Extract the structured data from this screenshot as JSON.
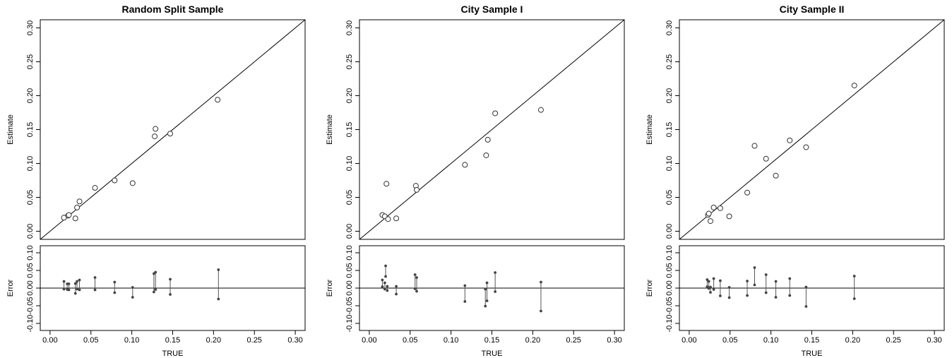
{
  "chart_data": [
    {
      "type": "scatter",
      "title": "Random Split Sample",
      "xlabel": "TRUE",
      "ylabel_top": "Estimate",
      "ylabel_bottom": "Error",
      "xlim": [
        -0.012,
        0.312
      ],
      "ylim_top": [
        -0.012,
        0.312
      ],
      "ylim_bottom": [
        -0.12,
        0.12
      ],
      "xticks": [
        "0.00",
        "0.05",
        "0.10",
        "0.15",
        "0.20",
        "0.25",
        "0.30"
      ],
      "yticks_top": [
        "0.00",
        "0.05",
        "0.10",
        "0.15",
        "0.20",
        "0.25",
        "0.30"
      ],
      "yticks_bottom": [
        "-0.10",
        "-0.05",
        "0.00",
        "0.05",
        "0.10"
      ],
      "reference_line": "y = x",
      "points": [
        {
          "x": 0.017,
          "y": 0.02
        },
        {
          "x": 0.022,
          "y": 0.023
        },
        {
          "x": 0.023,
          "y": 0.024
        },
        {
          "x": 0.031,
          "y": 0.019
        },
        {
          "x": 0.033,
          "y": 0.035
        },
        {
          "x": 0.036,
          "y": 0.044
        },
        {
          "x": 0.055,
          "y": 0.064
        },
        {
          "x": 0.079,
          "y": 0.075
        },
        {
          "x": 0.101,
          "y": 0.071
        },
        {
          "x": 0.128,
          "y": 0.14
        },
        {
          "x": 0.129,
          "y": 0.151
        },
        {
          "x": 0.147,
          "y": 0.144
        },
        {
          "x": 0.205,
          "y": 0.194
        }
      ],
      "error_bars": [
        {
          "x": 0.017,
          "low": -0.003,
          "high": 0.019
        },
        {
          "x": 0.021,
          "low": -0.004,
          "high": 0.012
        },
        {
          "x": 0.023,
          "low": -0.005,
          "high": 0.012
        },
        {
          "x": 0.031,
          "low": -0.015,
          "high": 0.013
        },
        {
          "x": 0.033,
          "low": -0.003,
          "high": 0.019
        },
        {
          "x": 0.036,
          "low": -0.005,
          "high": 0.023
        },
        {
          "x": 0.055,
          "low": -0.005,
          "high": 0.03
        },
        {
          "x": 0.079,
          "low": -0.013,
          "high": 0.017
        },
        {
          "x": 0.101,
          "low": -0.026,
          "high": 0.002
        },
        {
          "x": 0.127,
          "low": -0.011,
          "high": 0.041
        },
        {
          "x": 0.129,
          "low": -0.004,
          "high": 0.045
        },
        {
          "x": 0.147,
          "low": -0.018,
          "high": 0.025
        },
        {
          "x": 0.206,
          "low": -0.031,
          "high": 0.052
        }
      ]
    },
    {
      "type": "scatter",
      "title": "City Sample I",
      "xlabel": "TRUE",
      "ylabel_top": "Estimate",
      "ylabel_bottom": "Error",
      "xlim": [
        -0.012,
        0.312
      ],
      "ylim_top": [
        -0.012,
        0.312
      ],
      "ylim_bottom": [
        -0.12,
        0.12
      ],
      "xticks": [
        "0.00",
        "0.05",
        "0.10",
        "0.15",
        "0.20",
        "0.25",
        "0.30"
      ],
      "yticks_top": [
        "0.00",
        "0.05",
        "0.10",
        "0.15",
        "0.20",
        "0.25",
        "0.30"
      ],
      "yticks_bottom": [
        "-0.10",
        "-0.05",
        "0.00",
        "0.05",
        "0.10"
      ],
      "reference_line": "y = x",
      "points": [
        {
          "x": 0.016,
          "y": 0.024
        },
        {
          "x": 0.019,
          "y": 0.022
        },
        {
          "x": 0.021,
          "y": 0.07
        },
        {
          "x": 0.023,
          "y": 0.018
        },
        {
          "x": 0.033,
          "y": 0.019
        },
        {
          "x": 0.057,
          "y": 0.067
        },
        {
          "x": 0.058,
          "y": 0.061
        },
        {
          "x": 0.117,
          "y": 0.098
        },
        {
          "x": 0.143,
          "y": 0.112
        },
        {
          "x": 0.145,
          "y": 0.135
        },
        {
          "x": 0.154,
          "y": 0.174
        },
        {
          "x": 0.21,
          "y": 0.179
        }
      ],
      "error_bars": [
        {
          "x": 0.016,
          "low": 0.004,
          "high": 0.023
        },
        {
          "x": 0.019,
          "low": -0.003,
          "high": 0.015
        },
        {
          "x": 0.02,
          "low": 0.033,
          "high": 0.063
        },
        {
          "x": 0.022,
          "low": -0.007,
          "high": 0.005
        },
        {
          "x": 0.033,
          "low": -0.017,
          "high": 0.005
        },
        {
          "x": 0.056,
          "low": -0.002,
          "high": 0.038
        },
        {
          "x": 0.058,
          "low": -0.009,
          "high": 0.03
        },
        {
          "x": 0.117,
          "low": -0.038,
          "high": 0.007
        },
        {
          "x": 0.142,
          "low": -0.051,
          "high": -0.003
        },
        {
          "x": 0.144,
          "low": -0.036,
          "high": 0.015
        },
        {
          "x": 0.154,
          "low": -0.01,
          "high": 0.044
        },
        {
          "x": 0.21,
          "low": -0.065,
          "high": 0.017
        }
      ]
    },
    {
      "type": "scatter",
      "title": "City Sample II",
      "xlabel": "TRUE",
      "ylabel_top": "Estimate",
      "ylabel_bottom": "Error",
      "xlim": [
        -0.012,
        0.312
      ],
      "ylim_top": [
        -0.012,
        0.312
      ],
      "ylim_bottom": [
        -0.12,
        0.12
      ],
      "xticks": [
        "0.00",
        "0.05",
        "0.10",
        "0.15",
        "0.20",
        "0.25",
        "0.30"
      ],
      "yticks_top": [
        "0.00",
        "0.05",
        "0.10",
        "0.15",
        "0.20",
        "0.25",
        "0.30"
      ],
      "yticks_bottom": [
        "-0.10",
        "-0.05",
        "0.00",
        "0.05",
        "0.10"
      ],
      "reference_line": "y = x",
      "points": [
        {
          "x": 0.023,
          "y": 0.024
        },
        {
          "x": 0.024,
          "y": 0.026
        },
        {
          "x": 0.026,
          "y": 0.015
        },
        {
          "x": 0.03,
          "y": 0.035
        },
        {
          "x": 0.038,
          "y": 0.034
        },
        {
          "x": 0.049,
          "y": 0.022
        },
        {
          "x": 0.071,
          "y": 0.057
        },
        {
          "x": 0.08,
          "y": 0.126
        },
        {
          "x": 0.094,
          "y": 0.107
        },
        {
          "x": 0.106,
          "y": 0.082
        },
        {
          "x": 0.123,
          "y": 0.134
        },
        {
          "x": 0.143,
          "y": 0.124
        },
        {
          "x": 0.202,
          "y": 0.215
        }
      ],
      "error_bars": [
        {
          "x": 0.022,
          "low": 0.004,
          "high": 0.024
        },
        {
          "x": 0.024,
          "low": -0.001,
          "high": 0.019
        },
        {
          "x": 0.026,
          "low": -0.012,
          "high": 0.003
        },
        {
          "x": 0.03,
          "low": -0.004,
          "high": 0.027
        },
        {
          "x": 0.038,
          "low": -0.022,
          "high": 0.021
        },
        {
          "x": 0.049,
          "low": -0.027,
          "high": 0.002
        },
        {
          "x": 0.071,
          "low": -0.021,
          "high": 0.02
        },
        {
          "x": 0.08,
          "low": 0.009,
          "high": 0.058
        },
        {
          "x": 0.094,
          "low": -0.013,
          "high": 0.038
        },
        {
          "x": 0.106,
          "low": -0.026,
          "high": 0.019
        },
        {
          "x": 0.123,
          "low": -0.021,
          "high": 0.027
        },
        {
          "x": 0.143,
          "low": -0.052,
          "high": 0.003
        },
        {
          "x": 0.202,
          "low": -0.03,
          "high": 0.034
        }
      ]
    }
  ]
}
